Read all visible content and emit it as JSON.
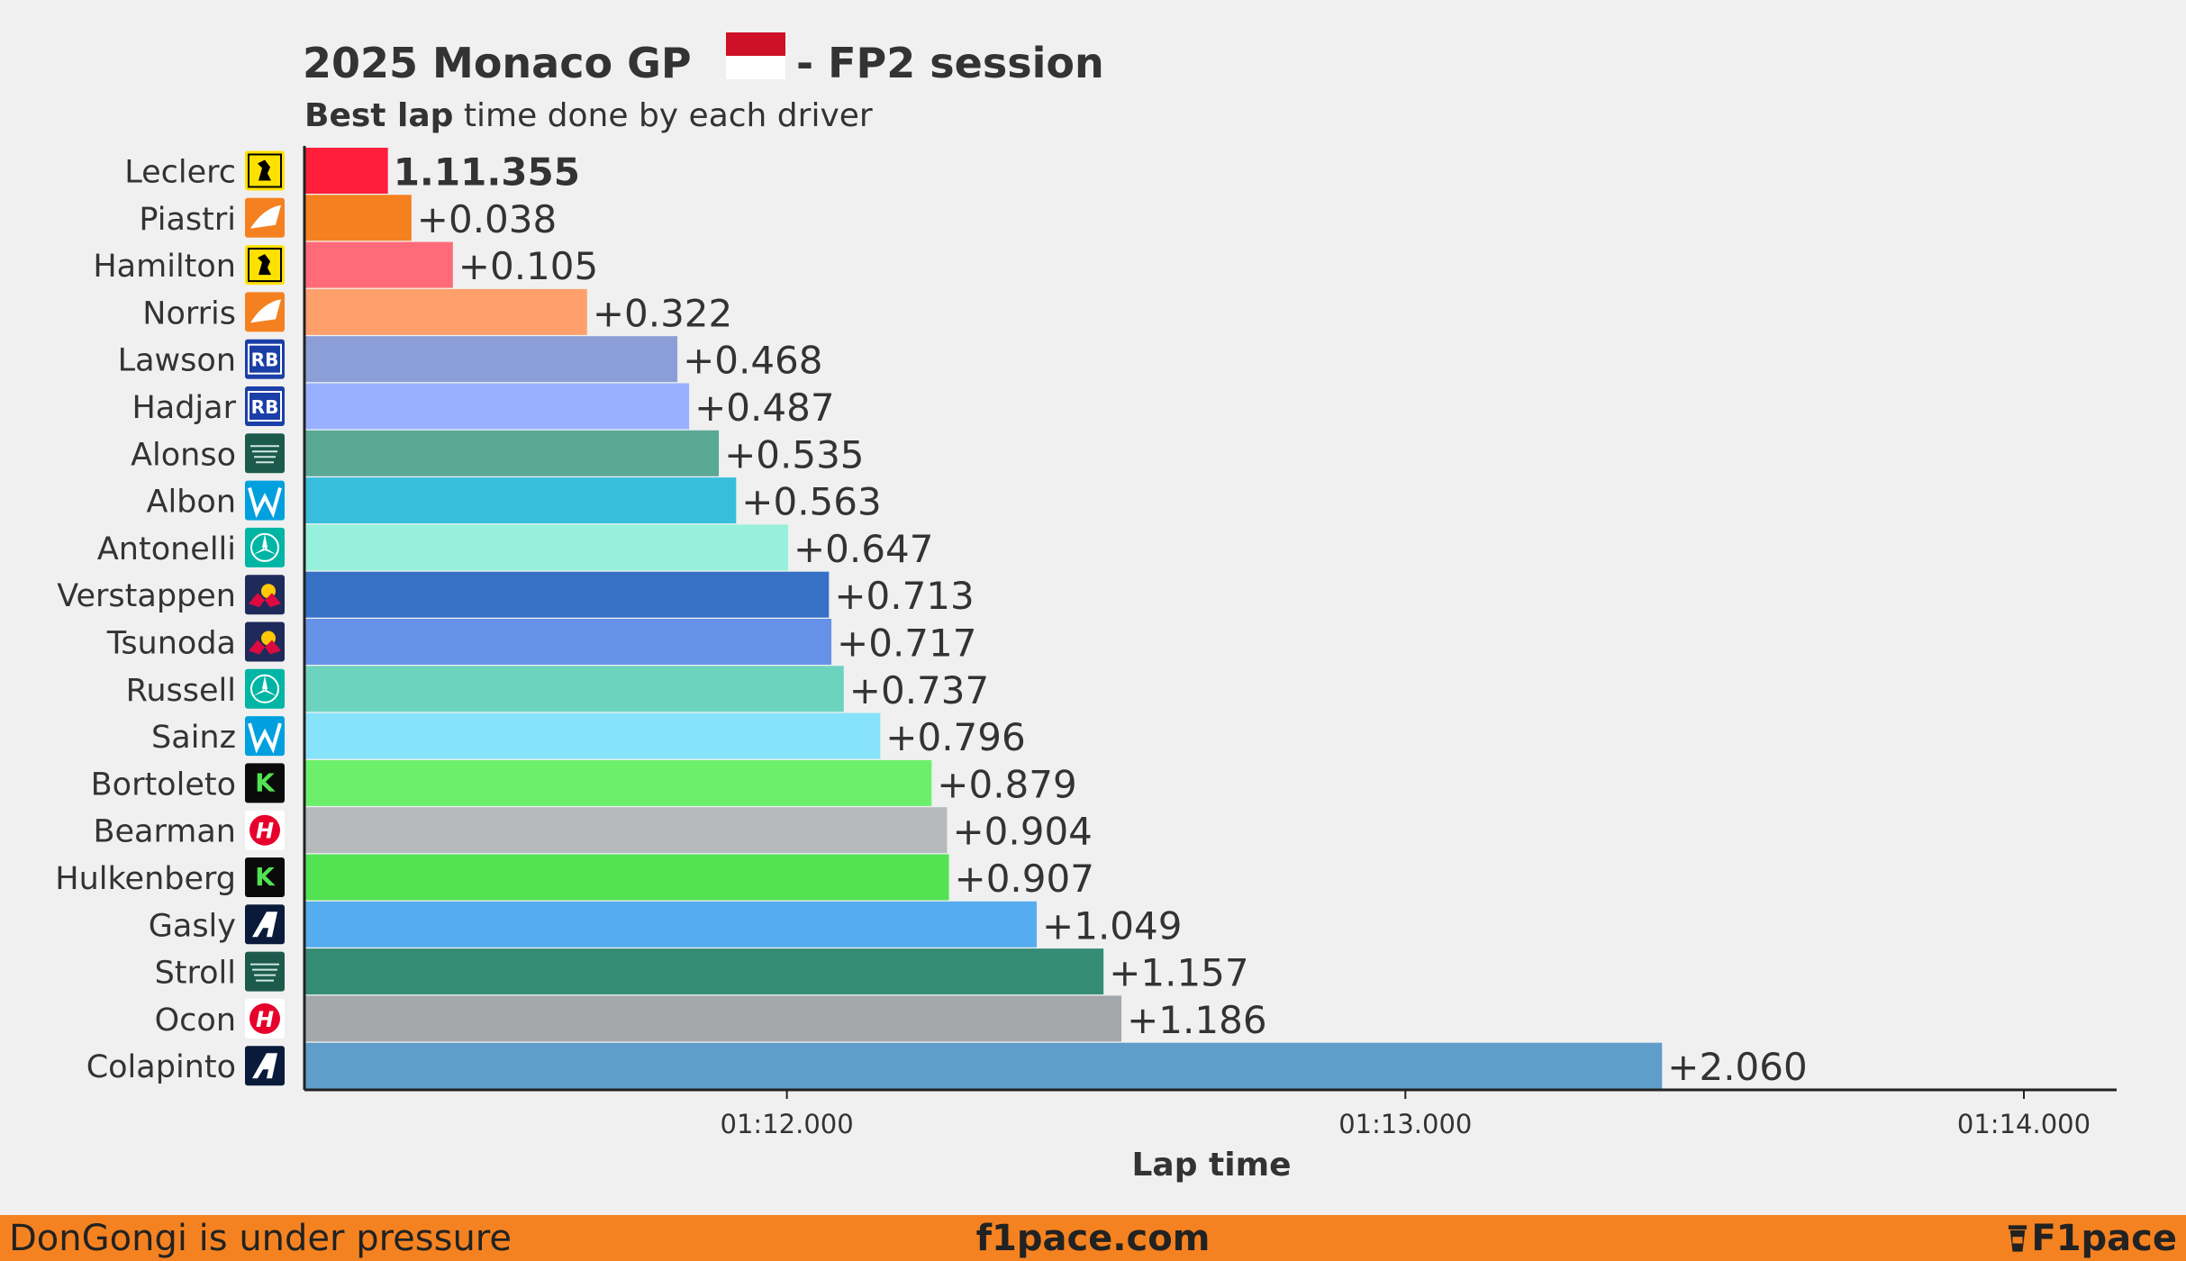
{
  "header": {
    "title_prefix": "2025 Monaco GP",
    "title_suffix": "- FP2 session",
    "subtitle_bold": "Best lap",
    "subtitle_rest": " time done by each driver"
  },
  "flag": {
    "top_color": "#ce1126",
    "bottom_color": "#ffffff"
  },
  "footer": {
    "left_text": "DonGongi is under pressure",
    "center_text": "f1pace.com",
    "brand_text": "F1pace"
  },
  "chart_data": {
    "type": "bar",
    "orientation": "horizontal",
    "title": "2025 Monaco GP - FP2 session",
    "subtitle": "Best lap time done by each driver",
    "xlabel": "Lap time",
    "xlim_seconds": [
      71.22,
      74.15
    ],
    "xticks": [
      {
        "value": 72.0,
        "label": "01:12.000"
      },
      {
        "value": 73.0,
        "label": "01:13.000"
      },
      {
        "value": 74.0,
        "label": "01:14.000"
      }
    ],
    "fastest_time_label": "1.11.355",
    "fastest_time_seconds": 71.355,
    "drivers": [
      {
        "name": "Leclerc",
        "team": "ferrari",
        "gap_label": "1.11.355",
        "lap_seconds": 71.355,
        "color": "#ff1e3c",
        "bold": true
      },
      {
        "name": "Piastri",
        "team": "mclaren",
        "gap_label": "+0.038",
        "lap_seconds": 71.393,
        "color": "#f58020"
      },
      {
        "name": "Hamilton",
        "team": "ferrari",
        "gap_label": "+0.105",
        "lap_seconds": 71.46,
        "color": "#ff6b78"
      },
      {
        "name": "Norris",
        "team": "mclaren",
        "gap_label": "+0.322",
        "lap_seconds": 71.677,
        "color": "#ffa06c"
      },
      {
        "name": "Lawson",
        "team": "racingbulls",
        "gap_label": "+0.468",
        "lap_seconds": 71.823,
        "color": "#8c9ed8"
      },
      {
        "name": "Hadjar",
        "team": "racingbulls",
        "gap_label": "+0.487",
        "lap_seconds": 71.842,
        "color": "#98b0ff"
      },
      {
        "name": "Alonso",
        "team": "astonmartin",
        "gap_label": "+0.535",
        "lap_seconds": 71.89,
        "color": "#5aa996"
      },
      {
        "name": "Albon",
        "team": "williams",
        "gap_label": "+0.563",
        "lap_seconds": 71.918,
        "color": "#37bedd"
      },
      {
        "name": "Antonelli",
        "team": "mercedes",
        "gap_label": "+0.647",
        "lap_seconds": 72.002,
        "color": "#96f0dc"
      },
      {
        "name": "Verstappen",
        "team": "redbull",
        "gap_label": "+0.713",
        "lap_seconds": 72.068,
        "color": "#3671c6"
      },
      {
        "name": "Tsunoda",
        "team": "redbull",
        "gap_label": "+0.717",
        "lap_seconds": 72.072,
        "color": "#6692e8"
      },
      {
        "name": "Russell",
        "team": "mercedes",
        "gap_label": "+0.737",
        "lap_seconds": 72.092,
        "color": "#6cd3bf"
      },
      {
        "name": "Sainz",
        "team": "williams",
        "gap_label": "+0.796",
        "lap_seconds": 72.151,
        "color": "#87e3fa"
      },
      {
        "name": "Bortoleto",
        "team": "sauber",
        "gap_label": "+0.879",
        "lap_seconds": 72.234,
        "color": "#6cf06c"
      },
      {
        "name": "Bearman",
        "team": "haas",
        "gap_label": "+0.904",
        "lap_seconds": 72.259,
        "color": "#b6babd"
      },
      {
        "name": "Hulkenberg",
        "team": "sauber",
        "gap_label": "+0.907",
        "lap_seconds": 72.262,
        "color": "#52e252"
      },
      {
        "name": "Gasly",
        "team": "alpine",
        "gap_label": "+1.049",
        "lap_seconds": 72.404,
        "color": "#55acee"
      },
      {
        "name": "Stroll",
        "team": "astonmartin",
        "gap_label": "+1.157",
        "lap_seconds": 72.512,
        "color": "#358c75"
      },
      {
        "name": "Ocon",
        "team": "haas",
        "gap_label": "+1.186",
        "lap_seconds": 72.541,
        "color": "#a5a8ab"
      },
      {
        "name": "Colapinto",
        "team": "alpine",
        "gap_label": "+2.060",
        "lap_seconds": 73.415,
        "color": "#5f9dca"
      }
    ]
  }
}
